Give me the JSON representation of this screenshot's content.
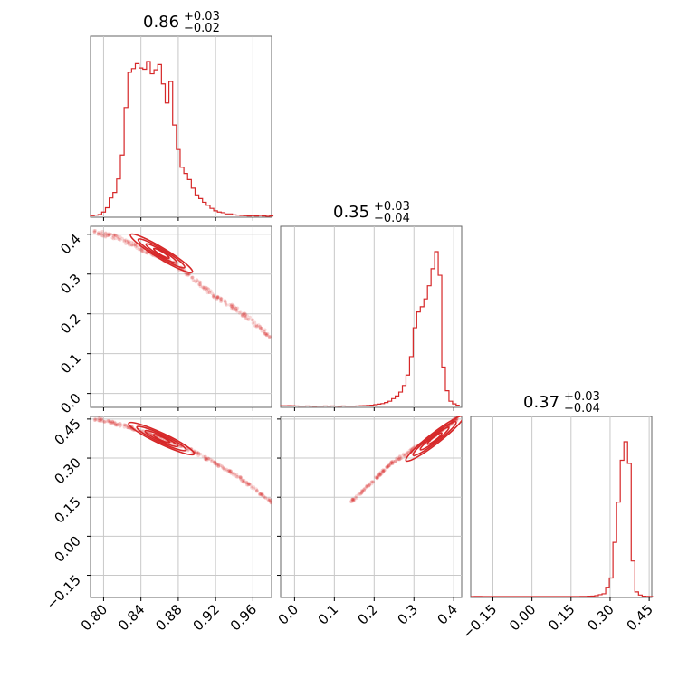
{
  "chart_data": {
    "type": "corner",
    "color": "#d62728",
    "grid": true,
    "params": [
      {
        "median": "0.86",
        "upper": "+0.03",
        "lower": "−0.02",
        "ticks": [
          0.8,
          0.84,
          0.88,
          0.92,
          0.96
        ],
        "tick_labels": [
          "0.80",
          "0.84",
          "0.88",
          "0.92",
          "0.96"
        ],
        "range": [
          0.786,
          0.98
        ]
      },
      {
        "median": "0.35",
        "upper": "+0.03",
        "lower": "−0.04",
        "ticks": [
          0.0,
          0.1,
          0.2,
          0.3,
          0.4
        ],
        "tick_labels": [
          "0.0",
          "0.1",
          "0.2",
          "0.3",
          "0.4"
        ],
        "range": [
          -0.035,
          0.42
        ]
      },
      {
        "median": "0.37",
        "upper": "+0.03",
        "lower": "−0.04",
        "ticks": [
          -0.15,
          0.0,
          0.15,
          0.3,
          0.45
        ],
        "tick_labels": [
          "−0.15",
          "0.00",
          "0.15",
          "0.30",
          "0.45"
        ],
        "range": [
          -0.235,
          0.46
        ]
      }
    ],
    "hist1": {
      "start": 0.786,
      "step": 0.004,
      "counts": [
        2,
        4,
        6,
        14,
        28,
        60,
        78,
        122,
        200,
        355,
        470,
        482,
        498,
        484,
        480,
        505,
        465,
        478,
        495,
        432,
        370,
        440,
        298,
        218,
        160,
        140,
        120,
        92,
        70,
        58,
        46,
        36,
        26,
        18,
        14,
        12,
        8,
        8,
        5,
        4,
        3,
        2,
        1,
        2,
        1,
        3,
        1,
        0,
        1
      ]
    },
    "hist2": {
      "start": -0.035,
      "step": 0.009,
      "counts": [
        5,
        5,
        6,
        5,
        4,
        3,
        3,
        4,
        3,
        2,
        3,
        3,
        4,
        3,
        4,
        3,
        2,
        4,
        3,
        3,
        3,
        4,
        5,
        6,
        8,
        10,
        14,
        18,
        22,
        30,
        40,
        60,
        80,
        110,
        160,
        240,
        380,
        600,
        720,
        760,
        820,
        920,
        1050,
        1180,
        1000,
        300,
        120,
        40,
        20,
        10
      ]
    },
    "hist3": {
      "start": -0.235,
      "step": 0.014,
      "counts": [
        0,
        1,
        1,
        0,
        0,
        0,
        0,
        0,
        0,
        0,
        0,
        0,
        0,
        0,
        0,
        0,
        0,
        0,
        0,
        0,
        0,
        0,
        0,
        0,
        0,
        0,
        0,
        0,
        0,
        0,
        1,
        1,
        2,
        3,
        6,
        12,
        18,
        60,
        120,
        350,
        610,
        880,
        1000,
        860,
        230,
        30,
        10,
        2,
        1,
        0
      ]
    },
    "ridge": {
      "theta1": [
        0.79,
        0.8,
        0.81,
        0.82,
        0.83,
        0.84,
        0.85,
        0.86,
        0.87,
        0.88,
        0.89,
        0.9,
        0.91,
        0.92,
        0.93,
        0.94,
        0.95,
        0.96,
        0.97,
        0.98
      ],
      "theta2": [
        0.41,
        0.4,
        0.395,
        0.385,
        0.375,
        0.365,
        0.355,
        0.345,
        0.332,
        0.318,
        0.3,
        0.282,
        0.262,
        0.243,
        0.228,
        0.215,
        0.198,
        0.18,
        0.16,
        0.14
      ],
      "theta3": [
        0.45,
        0.445,
        0.435,
        0.425,
        0.415,
        0.405,
        0.392,
        0.38,
        0.366,
        0.352,
        0.336,
        0.318,
        0.299,
        0.28,
        0.26,
        0.238,
        0.213,
        0.186,
        0.158,
        0.13
      ]
    },
    "contour_centers": {
      "theta1": 0.862,
      "theta2": 0.352,
      "theta3": 0.375
    }
  }
}
